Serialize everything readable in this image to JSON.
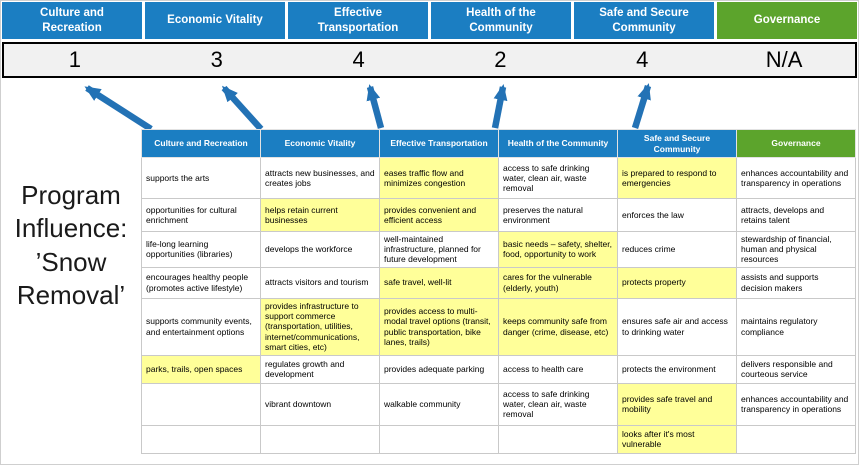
{
  "title_block": {
    "text": "Program Influence: ’Snow Removal’"
  },
  "colors": {
    "header_blue": "#1B7EC2",
    "header_green": "#5CA42C",
    "highlight_yellow": "#FFFF99",
    "arrow_blue": "#2372B5",
    "score_bg": "#F1F1F1"
  },
  "summary": {
    "categories": [
      {
        "label": "Culture and Recreation",
        "score": "1",
        "theme": "blue"
      },
      {
        "label": "Economic Vitality",
        "score": "3",
        "theme": "blue"
      },
      {
        "label": "Effective Transportation",
        "score": "4",
        "theme": "blue"
      },
      {
        "label": "Health of the Community",
        "score": "2",
        "theme": "blue"
      },
      {
        "label": "Safe and Secure Community",
        "score": "4",
        "theme": "blue"
      },
      {
        "label": "Governance",
        "score": "N/A",
        "theme": "green"
      }
    ]
  },
  "matrix": {
    "headers": [
      {
        "label": "Culture and Recreation",
        "theme": "blue"
      },
      {
        "label": "Economic Vitality",
        "theme": "blue"
      },
      {
        "label": "Effective Transportation",
        "theme": "blue"
      },
      {
        "label": "Health of the Community",
        "theme": "blue"
      },
      {
        "label": "Safe and Secure Community",
        "theme": "blue"
      },
      {
        "label": "Governance",
        "theme": "green"
      }
    ],
    "rows": [
      [
        {
          "text": "supports the arts",
          "highlight": false
        },
        {
          "text": "attracts new businesses, and creates jobs",
          "highlight": false
        },
        {
          "text": "eases traffic flow and minimizes congestion",
          "highlight": true
        },
        {
          "text": "access to safe drinking water, clean air, waste removal",
          "highlight": false
        },
        {
          "text": "is prepared to respond to emergencies",
          "highlight": true
        },
        {
          "text": "enhances accountability and transparency in operations",
          "highlight": false
        }
      ],
      [
        {
          "text": "opportunities for cultural enrichment",
          "highlight": false
        },
        {
          "text": "helps retain current businesses",
          "highlight": true
        },
        {
          "text": "provides convenient and efficient access",
          "highlight": true
        },
        {
          "text": "preserves the natural environment",
          "highlight": false
        },
        {
          "text": "enforces the law",
          "highlight": false
        },
        {
          "text": "attracts, develops and retains talent",
          "highlight": false
        }
      ],
      [
        {
          "text": "life-long learning opportunities (libraries)",
          "highlight": false
        },
        {
          "text": "develops the workforce",
          "highlight": false
        },
        {
          "text": "well-maintained infrastructure, planned for future development",
          "highlight": false
        },
        {
          "text": "basic needs – safety, shelter, food, opportunity to work",
          "highlight": true
        },
        {
          "text": "reduces crime",
          "highlight": false
        },
        {
          "text": "stewardship of financial, human and physical resources",
          "highlight": false
        }
      ],
      [
        {
          "text": "encourages healthy people (promotes active lifestyle)",
          "highlight": false
        },
        {
          "text": "attracts visitors and tourism",
          "highlight": false
        },
        {
          "text": "safe travel, well-lit",
          "highlight": true
        },
        {
          "text": "cares for the vulnerable (elderly, youth)",
          "highlight": true
        },
        {
          "text": "protects property",
          "highlight": true
        },
        {
          "text": "assists and supports decision makers",
          "highlight": false
        }
      ],
      [
        {
          "text": "supports community events, and entertainment options",
          "highlight": false
        },
        {
          "text": "provides infrastructure to support commerce (transportation, utilities, internet/communications, smart cities, etc)",
          "highlight": true
        },
        {
          "text": "provides access to multi-modal travel options (transit, public transportation, bike lanes, trails)",
          "highlight": true
        },
        {
          "text": "keeps community safe from danger (crime, disease, etc)",
          "highlight": true
        },
        {
          "text": "ensures safe air and access to drinking water",
          "highlight": false
        },
        {
          "text": "maintains regulatory compliance",
          "highlight": false
        }
      ],
      [
        {
          "text": "parks, trails, open spaces",
          "highlight": true
        },
        {
          "text": "regulates growth and development",
          "highlight": false
        },
        {
          "text": "provides adequate parking",
          "highlight": false
        },
        {
          "text": "access to health care",
          "highlight": false
        },
        {
          "text": "protects the environment",
          "highlight": false
        },
        {
          "text": "delivers responsible and courteous service",
          "highlight": false
        }
      ],
      [
        {
          "text": "",
          "highlight": false
        },
        {
          "text": "vibrant downtown",
          "highlight": false
        },
        {
          "text": "walkable community",
          "highlight": false
        },
        {
          "text": "access to safe drinking water, clean air, waste removal",
          "highlight": false
        },
        {
          "text": "provides safe travel and mobility",
          "highlight": true
        },
        {
          "text": "enhances accountability and transparency in operations",
          "highlight": false
        }
      ],
      [
        {
          "text": "",
          "highlight": false
        },
        {
          "text": "",
          "highlight": false
        },
        {
          "text": "",
          "highlight": false
        },
        {
          "text": "",
          "highlight": false
        },
        {
          "text": "looks after it's most vulnerable",
          "highlight": true
        },
        {
          "text": "",
          "highlight": false
        }
      ]
    ]
  }
}
